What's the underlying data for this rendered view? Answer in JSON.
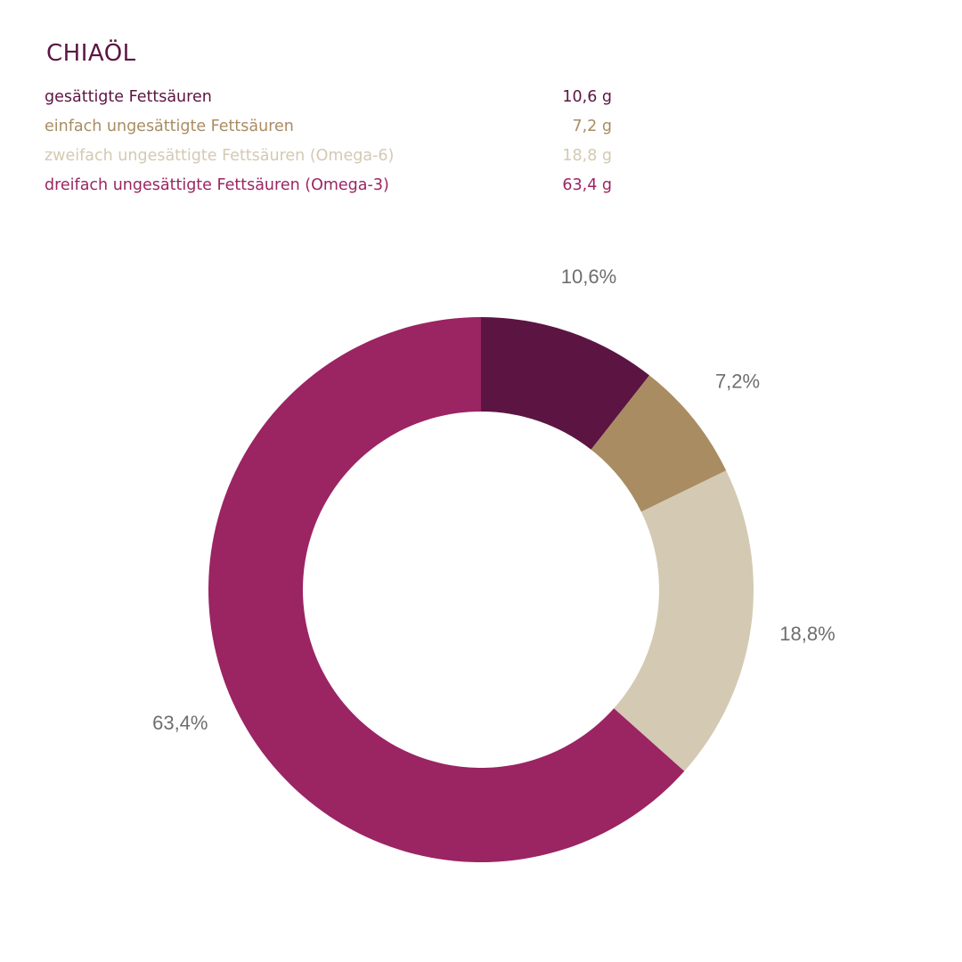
{
  "title": "CHIAÖL",
  "colors": {
    "title": "#5c1542",
    "value_label": "#6e6e6e"
  },
  "legend": [
    {
      "label": "gesättigte Fettsäuren",
      "value": "10,6 g",
      "color": "#5c1542"
    },
    {
      "label": "einfach ungesättigte Fettsäuren",
      "value": "7,2 g",
      "color": "#a98c62"
    },
    {
      "label": "zweifach ungesättigte Fettsäuren (Omega-6)",
      "value": "18,8 g",
      "color": "#d4c9b2"
    },
    {
      "label": "dreifach ungesättigte Fettsäuren (Omega-3)",
      "value": "63,4 g",
      "color": "#9b2463"
    }
  ],
  "chart_data": {
    "type": "pie",
    "variant": "donut",
    "title": "CHIAÖL",
    "unit": "g",
    "start": "top, clockwise",
    "categories": [
      "gesättigte Fettsäuren",
      "einfach ungesättigte Fettsäuren",
      "zweifach ungesättigte Fettsäuren (Omega-6)",
      "dreifach ungesättigte Fettsäuren (Omega-3)"
    ],
    "values": [
      10.6,
      7.2,
      18.8,
      63.4
    ],
    "labels": [
      "10,6%",
      "7,2%",
      "18,8%",
      "63,4%"
    ],
    "colors": [
      "#5c1542",
      "#a98c62",
      "#d4c9b2",
      "#9b2463"
    ]
  }
}
